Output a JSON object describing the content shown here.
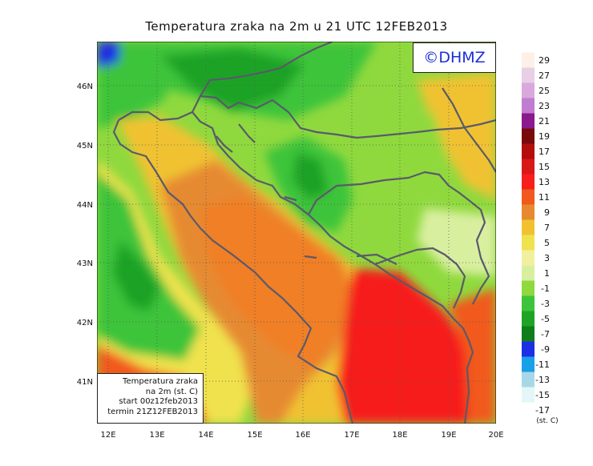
{
  "title": "Temperatura zraka na 2m u 21 UTC 12FEB2013",
  "copyright": "©DHMZ",
  "info_box": {
    "line1": "Temperatura zraka",
    "line2": "na 2m (st. C)",
    "line3": "start 00z12feb2013",
    "line4": "termin 21Z12FEB2013"
  },
  "lon_labels": [
    "12E",
    "13E",
    "14E",
    "15E",
    "16E",
    "17E",
    "18E",
    "19E",
    "20E"
  ],
  "lat_labels": [
    "46N",
    "45N",
    "44N",
    "43N",
    "42N",
    "41N"
  ],
  "legend": {
    "unit": "(st. C)",
    "items": [
      {
        "label": "29",
        "color": "#fdf0e6"
      },
      {
        "label": "27",
        "color": "#e8cfe6"
      },
      {
        "label": "25",
        "color": "#d9a8dc"
      },
      {
        "label": "23",
        "color": "#c27ccf"
      },
      {
        "label": "21",
        "color": "#8a1a8e"
      },
      {
        "label": "19",
        "color": "#7a0a0a"
      },
      {
        "label": "17",
        "color": "#b40d0d"
      },
      {
        "label": "15",
        "color": "#d91818"
      },
      {
        "label": "13",
        "color": "#f71e1e"
      },
      {
        "label": "11",
        "color": "#f15a1c"
      },
      {
        "label": "9",
        "color": "#e68a30"
      },
      {
        "label": "7",
        "color": "#f0c232"
      },
      {
        "label": "5",
        "color": "#f0e24e"
      },
      {
        "label": "3",
        "color": "#f3efa0"
      },
      {
        "label": "1",
        "color": "#d9efa0"
      },
      {
        "label": "-1",
        "color": "#8fd93e"
      },
      {
        "label": "-3",
        "color": "#3ec43a"
      },
      {
        "label": "-5",
        "color": "#1fa326"
      },
      {
        "label": "-7",
        "color": "#0f7d1a"
      },
      {
        "label": "-9",
        "color": "#1d2fe6"
      },
      {
        "label": "-11",
        "color": "#19a0e8"
      },
      {
        "label": "-13",
        "color": "#a8d8e8"
      },
      {
        "label": "-15",
        "color": "#e4f6f8"
      },
      {
        "label": "-17",
        "color": "#ffffff"
      }
    ]
  }
}
